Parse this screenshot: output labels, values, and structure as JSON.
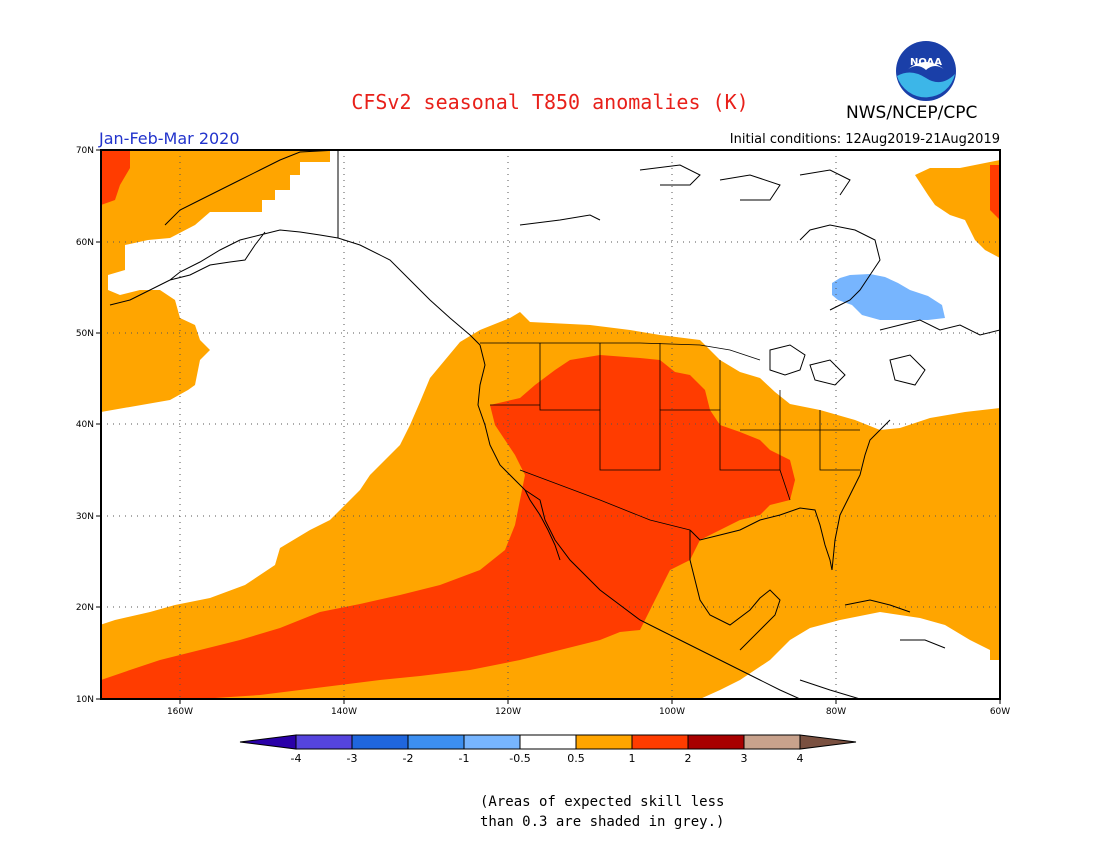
{
  "header": {
    "title": "CFSv2 seasonal T850 anomalies (K)",
    "organization": "NWS/NCEP/CPC",
    "season": "Jan-Feb-Mar 2020",
    "initial_conditions": "Initial conditions: 12Aug2019-21Aug2019",
    "logo_text": "NOAA"
  },
  "map": {
    "lon_range": [
      -175,
      -60
    ],
    "lat_range": [
      10,
      70
    ],
    "lat_ticks": [
      "70N",
      "60N",
      "50N",
      "40N",
      "30N",
      "20N",
      "10N"
    ],
    "lon_ticks": [
      "160W",
      "140W",
      "120W",
      "100W",
      "80W",
      "60W"
    ],
    "gridlines": "dotted",
    "colors": {
      "anom_0p5_1": "#ffa500",
      "anom_1_2": "#ff3c00",
      "anom_neg_1_neg_0p5": "#77b5fe",
      "coastline": "#000000"
    }
  },
  "legend": {
    "labels": [
      "-4",
      "-3",
      "-2",
      "-1",
      "-0.5",
      "0.5",
      "1",
      "2",
      "3",
      "4"
    ],
    "colors": [
      "#2a00a8",
      "#5544dd",
      "#1f66dd",
      "#3c8ff0",
      "#77b5fe",
      "#ffffff",
      "#ffa500",
      "#ff3c00",
      "#a80000",
      "#c8a28c",
      "#7a5040"
    ]
  },
  "note": {
    "line1": "(Areas of expected skill less",
    "line2": "than 0.3 are shaded in grey.)"
  }
}
